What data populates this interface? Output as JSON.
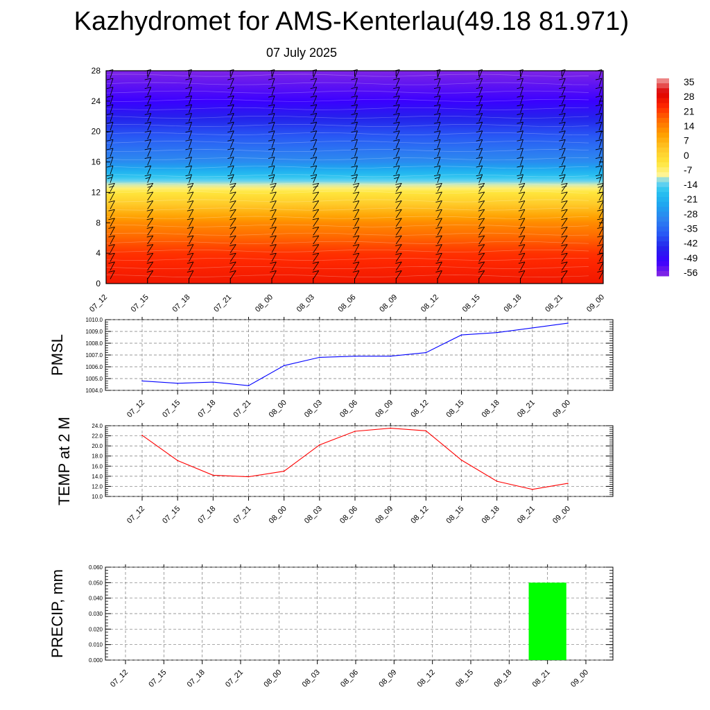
{
  "title": "Kazhydromet for AMS-Kenterlau(49.18 81.971)",
  "subtitle": "07 July 2025",
  "chart_data": [
    {
      "type": "heatmap",
      "description_key": "vertical-profile",
      "x_ticks": [
        "07_12",
        "07_15",
        "07_18",
        "07_21",
        "08_00",
        "08_03",
        "08_06",
        "08_09",
        "08_12",
        "08_15",
        "08_18",
        "08_21",
        "09_00"
      ],
      "y_ticks": [
        "0",
        "4",
        "8",
        "12",
        "16",
        "20",
        "24",
        "28"
      ],
      "ylim": [
        0,
        28
      ],
      "colorbar": {
        "labels": [
          "35",
          "28",
          "21",
          "14",
          "7",
          "0",
          "-7",
          "-14",
          "-21",
          "-28",
          "-35",
          "-42",
          "-49",
          "-56"
        ],
        "range": [
          -63,
          35
        ]
      },
      "temperature_profile": {
        "levels": [
          0,
          4,
          8,
          12,
          13,
          16,
          20,
          24,
          28
        ],
        "values": [
          24,
          20,
          10,
          -7,
          -14,
          -33,
          -44,
          -56,
          -62
        ]
      }
    },
    {
      "type": "line",
      "ylabel": "PMSL",
      "categories": [
        "07_12",
        "07_15",
        "07_18",
        "07_21",
        "08_00",
        "08_03",
        "08_06",
        "08_09",
        "08_12",
        "08_15",
        "08_18",
        "08_21",
        "09_00"
      ],
      "values": [
        1004.8,
        1004.6,
        1004.7,
        1004.4,
        1006.1,
        1006.8,
        1006.9,
        1006.9,
        1007.2,
        1008.7,
        1008.9,
        1009.3,
        1009.7
      ],
      "ylim": [
        1004.0,
        1010.0
      ],
      "y_ticks": [
        "1004.0",
        "1005.0",
        "1006.0",
        "1007.0",
        "1008.0",
        "1009.0",
        "1010.0"
      ],
      "color": "#0000ff"
    },
    {
      "type": "line",
      "ylabel": "TEMP at 2 M",
      "categories": [
        "07_12",
        "07_15",
        "07_18",
        "07_21",
        "08_00",
        "08_03",
        "08_06",
        "08_09",
        "08_12",
        "08_15",
        "08_18",
        "08_21",
        "09_00"
      ],
      "values": [
        22.1,
        17.1,
        14.2,
        13.9,
        15.0,
        20.2,
        22.9,
        23.5,
        23.0,
        17.2,
        13.0,
        11.4,
        12.6
      ],
      "ylim": [
        10.0,
        24.0
      ],
      "y_ticks": [
        "10.0",
        "12.0",
        "14.0",
        "16.0",
        "18.0",
        "20.0",
        "22.0",
        "24.0"
      ],
      "color": "#ff0000"
    },
    {
      "type": "bar",
      "ylabel": "PRECIP, mm",
      "categories": [
        "07_12",
        "07_15",
        "07_18",
        "07_21",
        "08_00",
        "08_03",
        "08_06",
        "08_09",
        "08_12",
        "08_15",
        "08_18",
        "08_21",
        "09_00"
      ],
      "values": [
        0,
        0,
        0,
        0,
        0,
        0,
        0,
        0,
        0,
        0,
        0,
        0.05,
        0
      ],
      "ylim": [
        0,
        0.06
      ],
      "y_ticks": [
        "0.000",
        "0.010",
        "0.020",
        "0.030",
        "0.040",
        "0.050",
        "0.060"
      ],
      "color": "#00ff00"
    }
  ]
}
